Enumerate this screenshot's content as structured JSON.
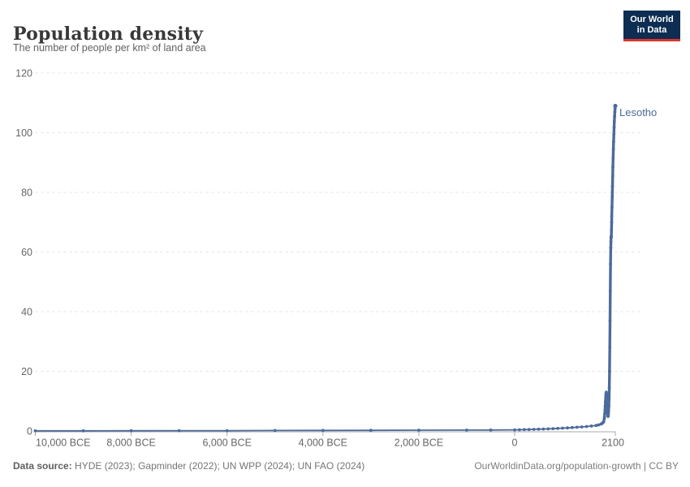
{
  "header": {
    "title": "Population density",
    "subtitle": "The number of people per km² of land area"
  },
  "logo": {
    "line1": "Our World",
    "line2": "in Data"
  },
  "footer": {
    "source_label": "Data source:",
    "source_text": " HYDE (2023); Gapminder (2022); UN WPP (2024); UN FAO (2024)",
    "link_text": "OurWorldinData.org/population-growth | CC BY"
  },
  "chart_data": {
    "type": "line",
    "title": "Population density",
    "subtitle": "The number of people per km² of land area",
    "xlabel": "",
    "ylabel": "",
    "xlim": [
      -10000,
      2100
    ],
    "ylim": [
      0,
      120
    ],
    "grid": true,
    "legend_position": "end-of-line-label",
    "colors": {
      "series_blue": "#4c6a9c",
      "gridline": "#e3e3e3",
      "axis_line": "#a9a9a9",
      "tick_label": "#666666"
    },
    "y_ticks": [
      0,
      20,
      40,
      60,
      80,
      100,
      120
    ],
    "x_ticks": [
      {
        "label": "10,000 BCE",
        "year": -10000
      },
      {
        "label": "8,000 BCE",
        "year": -8000
      },
      {
        "label": "6,000 BCE",
        "year": -6000
      },
      {
        "label": "4,000 BCE",
        "year": -4000
      },
      {
        "label": "2,000 BCE",
        "year": -2000
      },
      {
        "label": "0",
        "year": 0
      },
      {
        "label": "2100",
        "year": 2100
      }
    ],
    "series": [
      {
        "name": "Lesotho",
        "color": "#4c6a9c",
        "points": [
          [
            -10000,
            0.05
          ],
          [
            -9000,
            0.06
          ],
          [
            -8000,
            0.08
          ],
          [
            -7000,
            0.1
          ],
          [
            -6000,
            0.12
          ],
          [
            -5000,
            0.15
          ],
          [
            -4000,
            0.18
          ],
          [
            -3000,
            0.22
          ],
          [
            -2000,
            0.26
          ],
          [
            -1000,
            0.31
          ],
          [
            -500,
            0.34
          ],
          [
            0,
            0.38
          ],
          [
            100,
            0.42
          ],
          [
            200,
            0.46
          ],
          [
            300,
            0.5
          ],
          [
            400,
            0.55
          ],
          [
            500,
            0.6
          ],
          [
            600,
            0.66
          ],
          [
            700,
            0.72
          ],
          [
            800,
            0.79
          ],
          [
            900,
            0.87
          ],
          [
            1000,
            0.95
          ],
          [
            1100,
            1.04
          ],
          [
            1200,
            1.14
          ],
          [
            1300,
            1.25
          ],
          [
            1400,
            1.37
          ],
          [
            1500,
            1.5
          ],
          [
            1600,
            1.65
          ],
          [
            1700,
            1.85
          ],
          [
            1750,
            2.05
          ],
          [
            1800,
            2.3
          ],
          [
            1820,
            2.5
          ],
          [
            1840,
            2.75
          ],
          [
            1850,
            2.95
          ],
          [
            1860,
            3.3
          ],
          [
            1870,
            4.1
          ],
          [
            1875,
            4.8
          ],
          [
            1880,
            5.8
          ],
          [
            1885,
            7.0
          ],
          [
            1890,
            8.4
          ],
          [
            1895,
            9.9
          ],
          [
            1900,
            11.3
          ],
          [
            1905,
            12.4
          ],
          [
            1911,
            13.0
          ],
          [
            1915,
            12.4
          ],
          [
            1920,
            11.3
          ],
          [
            1925,
            9.8
          ],
          [
            1930,
            8.2
          ],
          [
            1935,
            6.8
          ],
          [
            1940,
            5.8
          ],
          [
            1945,
            5.1
          ],
          [
            1950,
            4.9
          ],
          [
            1955,
            5.5
          ],
          [
            1960,
            6.6
          ],
          [
            1965,
            8.3
          ],
          [
            1970,
            10.8
          ],
          [
            1975,
            14.5
          ],
          [
            1980,
            20.0
          ],
          [
            1985,
            28.0
          ],
          [
            1990,
            37.0
          ],
          [
            1995,
            47.0
          ],
          [
            2000,
            56.0
          ],
          [
            2005,
            61.5
          ],
          [
            2008,
            63.5
          ],
          [
            2011,
            64.8
          ],
          [
            2014,
            65.3
          ],
          [
            2017,
            65.0
          ],
          [
            2020,
            67.5
          ],
          [
            2023,
            70.0
          ],
          [
            2026,
            72.0
          ],
          [
            2030,
            75.0
          ],
          [
            2035,
            78.5
          ],
          [
            2040,
            82.0
          ],
          [
            2045,
            85.5
          ],
          [
            2050,
            88.5
          ],
          [
            2055,
            91.5
          ],
          [
            2060,
            94.5
          ],
          [
            2065,
            97.0
          ],
          [
            2070,
            99.5
          ],
          [
            2075,
            101.8
          ],
          [
            2080,
            103.8
          ],
          [
            2085,
            105.5
          ],
          [
            2090,
            107.0
          ],
          [
            2095,
            108.2
          ],
          [
            2100,
            109.0
          ]
        ]
      }
    ]
  }
}
